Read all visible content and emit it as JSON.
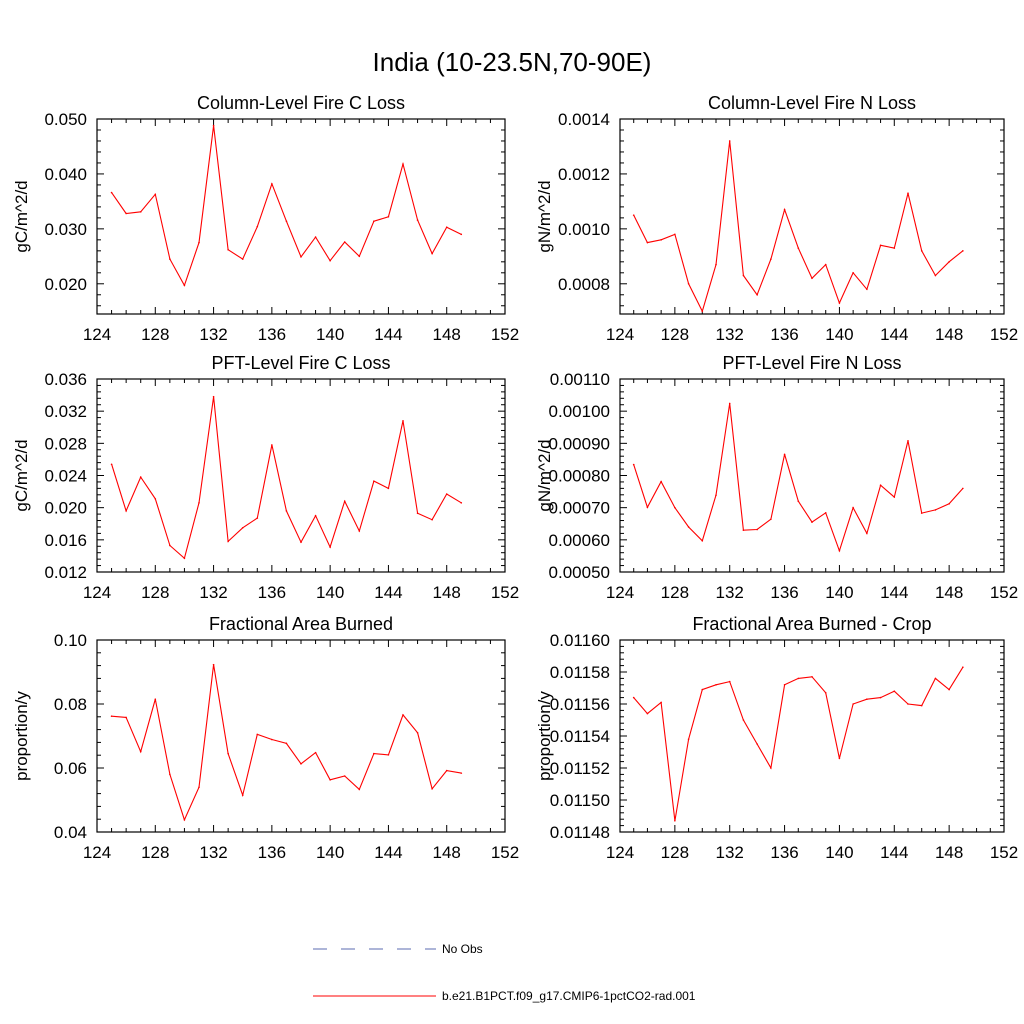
{
  "title": "India (10-23.5N,70-90E)",
  "legend": [
    {
      "label": "No Obs",
      "color": "#5b6bb0",
      "dash": true
    },
    {
      "label": "b.e21.B1PCT.f09_g17.CMIP6-1pctCO2-rad.001",
      "color": "#ff0000",
      "dash": false
    }
  ],
  "chart_data": [
    {
      "type": "line",
      "title": "Column-Level Fire C Loss",
      "ylabel": "gC/m^2/d",
      "xlim": [
        124,
        152
      ],
      "ylim": [
        0.0145,
        0.05
      ],
      "xticks": [
        "124",
        "128",
        "132",
        "136",
        "140",
        "144",
        "148",
        "152"
      ],
      "yticks": [
        "0.020",
        "0.030",
        "0.040",
        "0.050"
      ],
      "x": [
        125,
        126,
        127,
        128,
        129,
        130,
        131,
        132,
        133,
        134,
        135,
        136,
        137,
        138,
        139,
        140,
        141,
        142,
        143,
        144,
        145,
        146,
        147,
        148,
        149
      ],
      "series": [
        {
          "name": "b.e21.B1PCT.f09_g17.CMIP6-1pctCO2-rad.001",
          "color": "#ff0000",
          "values": [
            0.0366,
            0.0328,
            0.0331,
            0.0363,
            0.0245,
            0.0197,
            0.0275,
            0.0488,
            0.0262,
            0.0245,
            0.0304,
            0.0382,
            0.0314,
            0.0249,
            0.0285,
            0.0242,
            0.0276,
            0.025,
            0.0314,
            0.0322,
            0.0418,
            0.0316,
            0.0255,
            0.0303,
            0.029
          ]
        }
      ]
    },
    {
      "type": "line",
      "title": "Column-Level Fire N Loss",
      "ylabel": "gN/m^2/d",
      "xlim": [
        124,
        152
      ],
      "ylim": [
        0.00069,
        0.0014
      ],
      "xticks": [
        "124",
        "128",
        "132",
        "136",
        "140",
        "144",
        "148",
        "152"
      ],
      "yticks": [
        "0.0008",
        "0.0010",
        "0.0012",
        "0.0014"
      ],
      "x": [
        125,
        126,
        127,
        128,
        129,
        130,
        131,
        132,
        133,
        134,
        135,
        136,
        137,
        138,
        139,
        140,
        141,
        142,
        143,
        144,
        145,
        146,
        147,
        148,
        149
      ],
      "series": [
        {
          "name": "b.e21.B1PCT.f09_g17.CMIP6-1pctCO2-rad.001",
          "color": "#ff0000",
          "values": [
            0.00105,
            0.00095,
            0.00096,
            0.00098,
            0.0008,
            0.0007,
            0.00087,
            0.00132,
            0.00083,
            0.00076,
            0.00089,
            0.00107,
            0.00093,
            0.00082,
            0.00087,
            0.00073,
            0.00084,
            0.00078,
            0.00094,
            0.00093,
            0.00113,
            0.00092,
            0.00083,
            0.00088,
            0.00092
          ]
        }
      ]
    },
    {
      "type": "line",
      "title": "PFT-Level Fire C Loss",
      "ylabel": "gC/m^2/d",
      "xlim": [
        124,
        152
      ],
      "ylim": [
        0.012,
        0.036
      ],
      "xticks": [
        "124",
        "128",
        "132",
        "136",
        "140",
        "144",
        "148",
        "152"
      ],
      "yticks": [
        "0.012",
        "0.016",
        "0.020",
        "0.024",
        "0.028",
        "0.032",
        "0.036"
      ],
      "x": [
        125,
        126,
        127,
        128,
        129,
        130,
        131,
        132,
        133,
        134,
        135,
        136,
        137,
        138,
        139,
        140,
        141,
        142,
        143,
        144,
        145,
        146,
        147,
        148,
        149
      ],
      "series": [
        {
          "name": "b.e21.B1PCT.f09_g17.CMIP6-1pctCO2-rad.001",
          "color": "#ff0000",
          "values": [
            0.0254,
            0.0196,
            0.0238,
            0.0211,
            0.0153,
            0.0137,
            0.0206,
            0.0338,
            0.0158,
            0.0175,
            0.0187,
            0.0278,
            0.0196,
            0.0157,
            0.019,
            0.0151,
            0.0208,
            0.0171,
            0.0233,
            0.0224,
            0.0308,
            0.0193,
            0.0185,
            0.0217,
            0.0206
          ]
        }
      ]
    },
    {
      "type": "line",
      "title": "PFT-Level Fire N Loss",
      "ylabel": "gN/m^2/d",
      "xlim": [
        124,
        152
      ],
      "ylim": [
        0.0005,
        0.0011
      ],
      "xticks": [
        "124",
        "128",
        "132",
        "136",
        "140",
        "144",
        "148",
        "152"
      ],
      "yticks": [
        "0.00050",
        "0.00060",
        "0.00070",
        "0.00080",
        "0.00090",
        "0.00100",
        "0.00110"
      ],
      "x": [
        125,
        126,
        127,
        128,
        129,
        130,
        131,
        132,
        133,
        134,
        135,
        136,
        137,
        138,
        139,
        140,
        141,
        142,
        143,
        144,
        145,
        146,
        147,
        148,
        149
      ],
      "series": [
        {
          "name": "b.e21.B1PCT.f09_g17.CMIP6-1pctCO2-rad.001",
          "color": "#ff0000",
          "values": [
            0.000834,
            0.000701,
            0.000781,
            0.0007,
            0.00064,
            0.000597,
            0.000739,
            0.001024,
            0.00063,
            0.000632,
            0.000664,
            0.000866,
            0.00072,
            0.000655,
            0.000684,
            0.000566,
            0.0007,
            0.00062,
            0.00077,
            0.000733,
            0.000908,
            0.000683,
            0.000693,
            0.000712,
            0.00076
          ]
        }
      ]
    },
    {
      "type": "line",
      "title": "Fractional Area Burned",
      "ylabel": "proportion/y",
      "xlim": [
        124,
        152
      ],
      "ylim": [
        0.04,
        0.1
      ],
      "xticks": [
        "124",
        "128",
        "132",
        "136",
        "140",
        "144",
        "148",
        "152"
      ],
      "yticks": [
        "0.04",
        "0.06",
        "0.08",
        "0.10"
      ],
      "x": [
        125,
        126,
        127,
        128,
        129,
        130,
        131,
        132,
        133,
        134,
        135,
        136,
        137,
        138,
        139,
        140,
        141,
        142,
        143,
        144,
        145,
        146,
        147,
        148,
        149
      ],
      "series": [
        {
          "name": "b.e21.B1PCT.f09_g17.CMIP6-1pctCO2-rad.001",
          "color": "#ff0000",
          "values": [
            0.0762,
            0.0758,
            0.0651,
            0.0815,
            0.058,
            0.0438,
            0.054,
            0.0923,
            0.0645,
            0.0515,
            0.0705,
            0.0689,
            0.0677,
            0.0613,
            0.0648,
            0.0563,
            0.0575,
            0.0533,
            0.0645,
            0.0641,
            0.0766,
            0.071,
            0.0535,
            0.0592,
            0.0584
          ]
        }
      ]
    },
    {
      "type": "line",
      "title": "Fractional Area Burned - Crop",
      "ylabel": "proportion/y",
      "xlim": [
        124,
        152
      ],
      "ylim": [
        0.01148,
        0.0116
      ],
      "xticks": [
        "124",
        "128",
        "132",
        "136",
        "140",
        "144",
        "148",
        "152"
      ],
      "yticks": [
        "0.01148",
        "0.01150",
        "0.01152",
        "0.01154",
        "0.01156",
        "0.01158",
        "0.01160"
      ],
      "x": [
        125,
        126,
        127,
        128,
        129,
        130,
        131,
        132,
        133,
        134,
        135,
        136,
        137,
        138,
        139,
        140,
        141,
        142,
        143,
        144,
        145,
        146,
        147,
        148,
        149
      ],
      "series": [
        {
          "name": "b.e21.B1PCT.f09_g17.CMIP6-1pctCO2-rad.001",
          "color": "#ff0000",
          "values": [
            0.011564,
            0.011554,
            0.011561,
            0.011487,
            0.011538,
            0.011569,
            0.011572,
            0.011574,
            0.01155,
            0.011535,
            0.01152,
            0.011572,
            0.011576,
            0.011577,
            0.011567,
            0.011526,
            0.01156,
            0.011563,
            0.011564,
            0.011568,
            0.01156,
            0.011559,
            0.011576,
            0.011569,
            0.011583
          ]
        }
      ]
    }
  ]
}
